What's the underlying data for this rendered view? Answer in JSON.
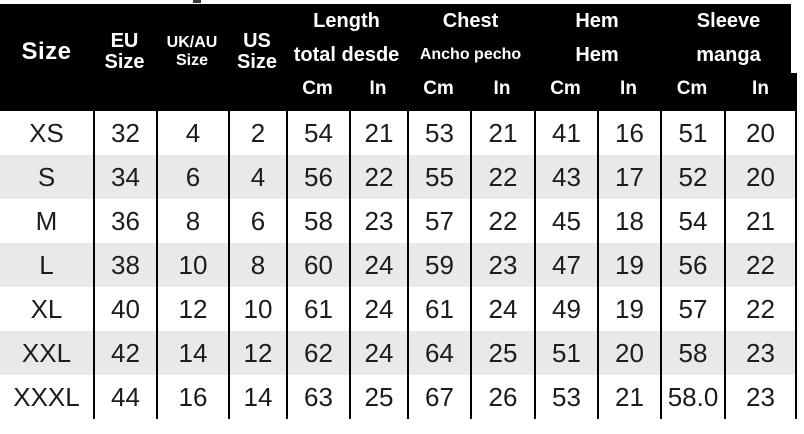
{
  "colors": {
    "header_bg": "#000000",
    "header_text": "#ffffff",
    "row_alt_bg": "#e9e9e9",
    "grid_line": "#000000",
    "text": "#1c1c1c",
    "page_bg": "#ffffff"
  },
  "chart_data": {
    "type": "table",
    "header": {
      "size": "Size",
      "eu": [
        "EU",
        "Size"
      ],
      "ukau": [
        "UK/AU",
        "Size"
      ],
      "us": [
        "US",
        "Size"
      ],
      "groups": [
        {
          "title": "Length",
          "subtitle": "total desde"
        },
        {
          "title": "Chest",
          "subtitle": "Ancho pecho"
        },
        {
          "title": "Hem",
          "subtitle": "Hem"
        },
        {
          "title": "Sleeve",
          "subtitle": "manga"
        }
      ],
      "units": {
        "cm": "Cm",
        "in": "In"
      }
    },
    "columns": [
      "Size",
      "EU Size",
      "UK/AU Size",
      "US Size",
      "Length Cm",
      "Length In",
      "Chest Cm",
      "Chest In",
      "Hem Cm",
      "Hem In",
      "Sleeve Cm",
      "Sleeve In"
    ],
    "rows": [
      [
        "XS",
        "32",
        "4",
        "2",
        "54",
        "21",
        "53",
        "21",
        "41",
        "16",
        "51",
        "20"
      ],
      [
        "S",
        "34",
        "6",
        "4",
        "56",
        "22",
        "55",
        "22",
        "43",
        "17",
        "52",
        "20"
      ],
      [
        "M",
        "36",
        "8",
        "6",
        "58",
        "23",
        "57",
        "22",
        "45",
        "18",
        "54",
        "21"
      ],
      [
        "L",
        "38",
        "10",
        "8",
        "60",
        "24",
        "59",
        "23",
        "47",
        "19",
        "56",
        "22"
      ],
      [
        "XL",
        "40",
        "12",
        "10",
        "61",
        "24",
        "61",
        "24",
        "49",
        "19",
        "57",
        "22"
      ],
      [
        "XXL",
        "42",
        "14",
        "12",
        "62",
        "24",
        "64",
        "25",
        "51",
        "20",
        "58",
        "23"
      ],
      [
        "XXXL",
        "44",
        "16",
        "14",
        "63",
        "25",
        "67",
        "26",
        "53",
        "21",
        "58.0",
        "23"
      ]
    ]
  }
}
